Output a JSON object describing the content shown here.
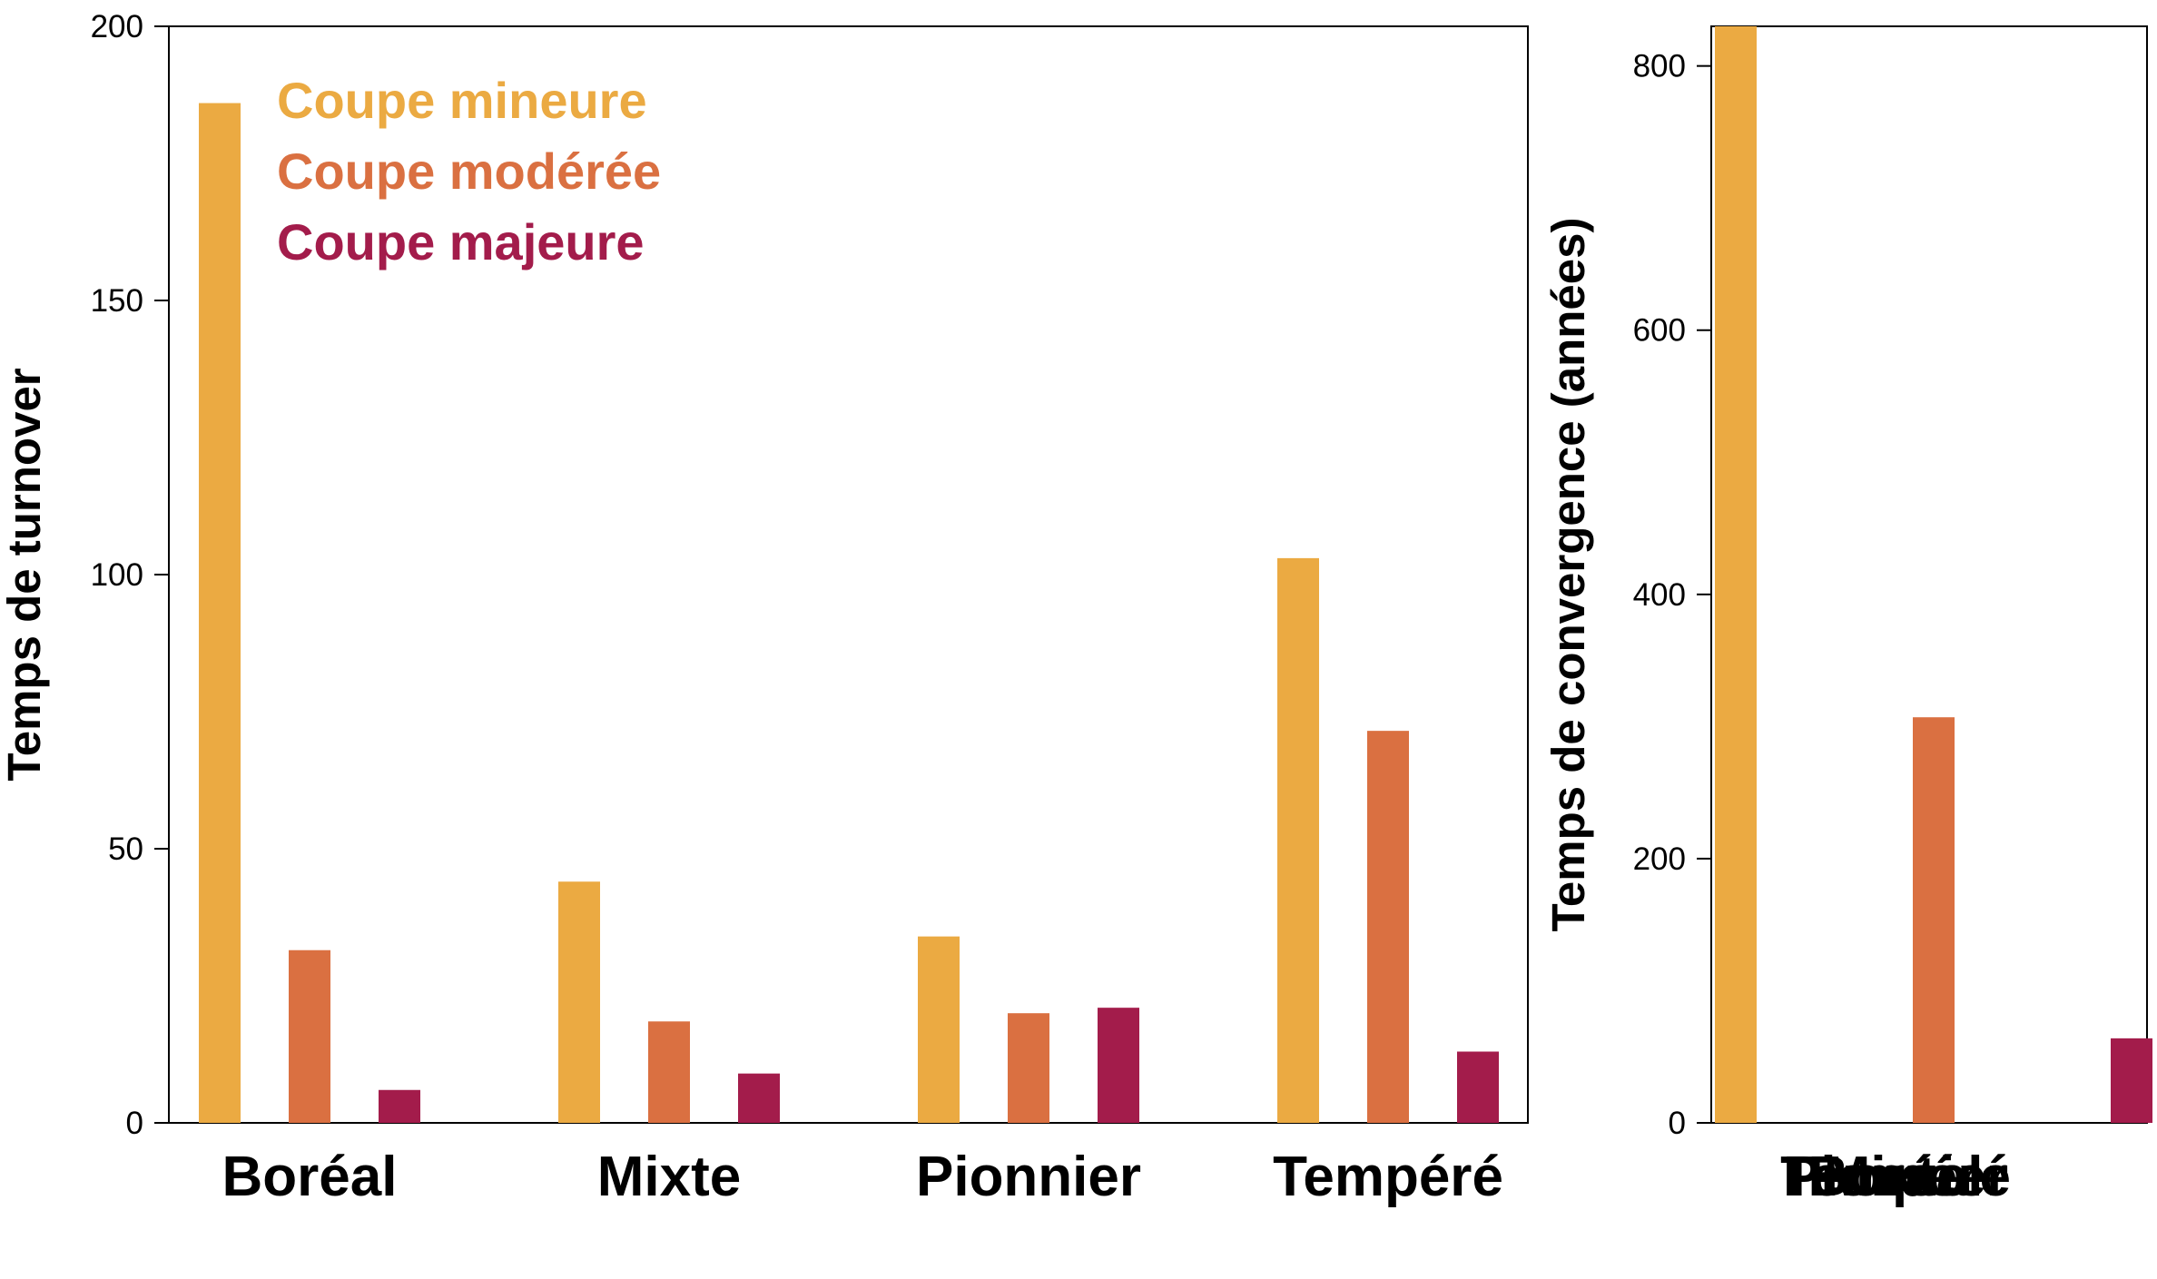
{
  "colors": {
    "mineure": "#EBAA42",
    "moderee": "#DA7041",
    "majeure": "#A31C4B",
    "axis": "#000000"
  },
  "chart_data": [
    {
      "type": "bar",
      "ylabel": "Temps de turnover",
      "ylim": [
        0,
        200
      ],
      "yticks": [
        "0",
        "50",
        "100",
        "150",
        "200"
      ],
      "categories": [
        "Boréal",
        "Mixte",
        "Pionnier",
        "Tempéré"
      ],
      "series": [
        {
          "name": "Coupe mineure",
          "color_key": "mineure",
          "values": [
            186,
            44,
            34,
            103
          ]
        },
        {
          "name": "Coupe modérée",
          "color_key": "moderee",
          "values": [
            31.5,
            18.5,
            20,
            71.5
          ]
        },
        {
          "name": "Coupe majeure",
          "color_key": "majeure",
          "values": [
            6,
            9,
            21,
            13
          ]
        }
      ],
      "legend": "top-left",
      "grid": false
    },
    {
      "type": "bar",
      "ylabel": "Temps de convergence (années)",
      "ylim": [
        0,
        830
      ],
      "yticks": [
        "0",
        "200",
        "400",
        "600",
        "800"
      ],
      "categories": [
        "Boréal",
        "Mixte",
        "Pionnier",
        "Tempéré"
      ],
      "category_labels_overlap": true,
      "series": [
        {
          "name": "Coupe mineure",
          "color_key": "mineure",
          "values": [
            830,
            null,
            null,
            null
          ]
        },
        {
          "name": "Coupe modérée",
          "color_key": "moderee",
          "values": [
            null,
            307,
            null,
            null
          ]
        },
        {
          "name": "Coupe majeure",
          "color_key": "majeure",
          "values": [
            null,
            null,
            64,
            null
          ]
        }
      ],
      "grid": false
    }
  ]
}
